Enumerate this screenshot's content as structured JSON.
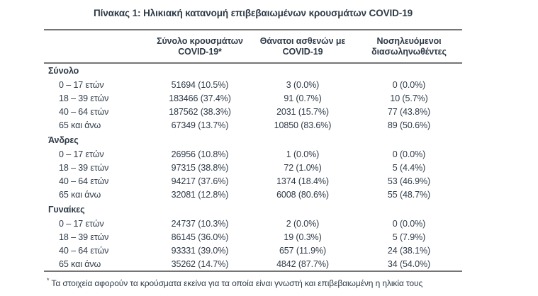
{
  "title": "Πίνακας 1: Ηλικιακή κατανομή επιβεβαιωμένων κρουσμάτων COVID-19",
  "table": {
    "header": {
      "row_label_column": "",
      "columns": [
        {
          "line1": "Σύνολο κρουσμάτων",
          "line2": "COVID-19*"
        },
        {
          "line1": "Θάνατοι ασθενών με",
          "line2": "COVID-19"
        },
        {
          "line1": "Νοσηλευόμενοι",
          "line2": "διασωληνωθέντες"
        }
      ]
    },
    "sections": [
      {
        "label": "Σύνολο",
        "rows": [
          {
            "label": "0 – 17 ετών",
            "cells": [
              "51694 (10.5%)",
              "3 (0.0%)",
              "0 (0.0%)"
            ]
          },
          {
            "label": "18 – 39 ετών",
            "cells": [
              "183466 (37.4%)",
              "91 (0.7%)",
              "10 (5.7%)"
            ]
          },
          {
            "label": "40 – 64 ετών",
            "cells": [
              "187562 (38.3%)",
              "2031 (15.7%)",
              "77 (43.8%)"
            ]
          },
          {
            "label": "65 και άνω",
            "cells": [
              "67349 (13.7%)",
              "10850 (83.6%)",
              "89 (50.6%)"
            ]
          }
        ]
      },
      {
        "label": "Άνδρες",
        "rows": [
          {
            "label": "0 – 17 ετών",
            "cells": [
              "26956 (10.8%)",
              "1 (0.0%)",
              "0 (0.0%)"
            ]
          },
          {
            "label": "18 – 39 ετών",
            "cells": [
              "97315 (38.8%)",
              "72 (1.0%)",
              "5 (4.4%)"
            ]
          },
          {
            "label": "40 – 64 ετών",
            "cells": [
              "94217 (37.6%)",
              "1374 (18.4%)",
              "53 (46.9%)"
            ]
          },
          {
            "label": "65 και άνω",
            "cells": [
              "32081 (12.8%)",
              "6008 (80.6%)",
              "55 (48.7%)"
            ]
          }
        ]
      },
      {
        "label": "Γυναίκες",
        "rows": [
          {
            "label": "0 – 17 ετών",
            "cells": [
              "24737 (10.3%)",
              "2 (0.0%)",
              "0 (0.0%)"
            ]
          },
          {
            "label": "18 – 39 ετών",
            "cells": [
              "86145 (36.0%)",
              "19 (0.3%)",
              "5 (7.9%)"
            ]
          },
          {
            "label": "40 – 64 ετών",
            "cells": [
              "93331 (39.0%)",
              "657 (11.9%)",
              "24 (38.1%)"
            ]
          },
          {
            "label": "65 και άνω",
            "cells": [
              "35262 (14.7%)",
              "4842 (87.7%)",
              "34 (54.0%)"
            ]
          }
        ]
      }
    ]
  },
  "footnote": {
    "marker": "*",
    "text": "Τα στοιχεία αφορούν τα κρούσματα εκείνα για τα οποία είναι γνωστή και επιβεβαιωμένη η ηλικία τους"
  },
  "colors": {
    "text": "#2e3a47",
    "border": "#757575",
    "background": "#ffffff"
  }
}
